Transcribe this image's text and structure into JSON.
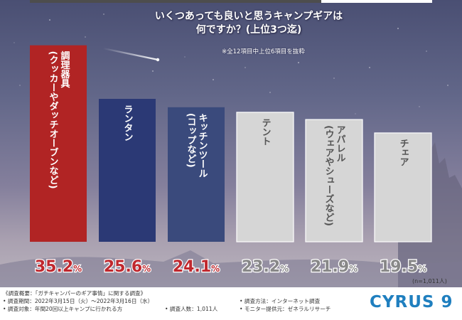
{
  "title_line1": "いくつあっても良いと思うキャンプギアは",
  "title_line2": "何ですか？(上位3つ迄)",
  "note": "※全12項目中上位6項目を抜粋",
  "n_label": "(n=1,011人)",
  "footer": {
    "overview": "《調査概要：「ガチキャンパーのギア事情」に関する調査》",
    "period": "• 調査期間：2022年3月15日（火）～2022年3月16日（水）",
    "target": "• 調査対象：年間20回以上キャンプに行かれる方",
    "count": "• 調査人数：1,011人",
    "method": "• 調査方法：インターネット調査",
    "monitor": "• モニター提供元：ゼネラルリサーチ",
    "logo": "CYRUS 9"
  },
  "colors": {
    "top1": "#b12424",
    "top2": "#2b3975",
    "top3": "#3a4a7c",
    "other": "#d6d6d6",
    "red_text": "#c0282e",
    "gray_text": "#888888"
  },
  "chart_data": {
    "type": "bar",
    "unit": "%",
    "ylim": [
      0,
      40
    ],
    "categories": [
      {
        "label": "調理器具",
        "sub": "(クッカーやダッチオーブンなど)"
      },
      {
        "label": "ランタン",
        "sub": ""
      },
      {
        "label": "キッチンツール",
        "sub": "(コップなど)"
      },
      {
        "label": "テント",
        "sub": ""
      },
      {
        "label": "アパレル",
        "sub": "(ウェアやシューズなど)"
      },
      {
        "label": "チェア",
        "sub": ""
      }
    ],
    "values": [
      35.2,
      25.6,
      24.1,
      23.2,
      21.9,
      19.5
    ]
  }
}
